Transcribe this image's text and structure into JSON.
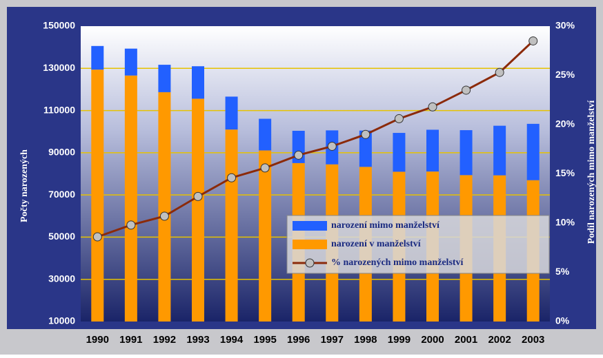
{
  "chart_data": {
    "type": "bar",
    "stacked": true,
    "y_title": "Počty narozených",
    "y2_title": "Podíl narozených mimo manželství",
    "categories": [
      "1990",
      "1991",
      "1992",
      "1993",
      "1994",
      "1995",
      "1996",
      "1997",
      "1998",
      "1999",
      "2000",
      "2001",
      "2002",
      "2003"
    ],
    "series": [
      {
        "name": "narození mimo manželství",
        "color": "#2260ff",
        "values": [
          11200,
          12750,
          13000,
          15400,
          15600,
          15000,
          15300,
          16100,
          17200,
          18400,
          19800,
          21300,
          23500,
          26700
        ]
      },
      {
        "name": "narození v manželství",
        "color": "#ff9900",
        "values": [
          119400,
          116600,
          108700,
          105600,
          91000,
          81100,
          75100,
          74500,
          73300,
          71000,
          71100,
          69400,
          69300,
          67000
        ]
      },
      {
        "name": "% narozených mimo manželství",
        "color": "#8b2a0a",
        "axis": "y2",
        "values": [
          8.6,
          9.8,
          10.7,
          12.7,
          14.6,
          15.6,
          16.9,
          17.8,
          19.0,
          20.6,
          21.8,
          23.5,
          25.3,
          28.5
        ]
      }
    ],
    "ylim": [
      10000,
      150000
    ],
    "yticks": [
      10000,
      30000,
      50000,
      70000,
      90000,
      110000,
      130000,
      150000
    ],
    "y2lim": [
      0,
      30
    ],
    "y2ticks": [
      {
        "value": 0,
        "label": "0%"
      },
      {
        "value": 5,
        "label": "5%"
      },
      {
        "value": 10,
        "label": "10%"
      },
      {
        "value": 15,
        "label": "15%"
      },
      {
        "value": 20,
        "label": "20%"
      },
      {
        "value": 25,
        "label": "25%"
      },
      {
        "value": 30,
        "label": "30%"
      }
    ],
    "grid": true,
    "grid_color": "#e6c200",
    "legend": "lower right"
  }
}
